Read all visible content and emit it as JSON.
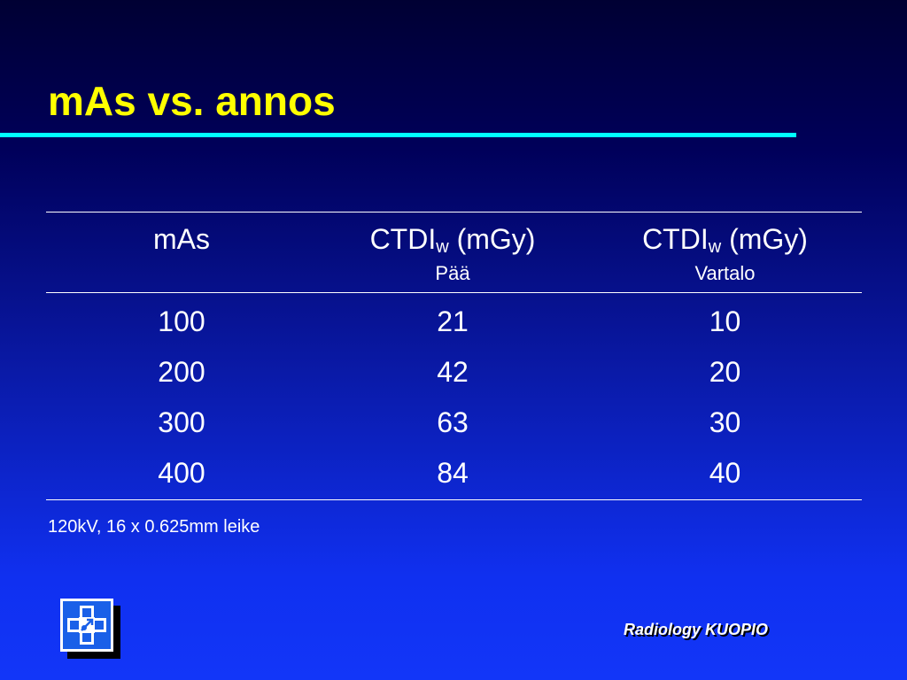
{
  "slide": {
    "title": "mAs vs. annos",
    "footnote": "120kV, 16 x 0.625mm leike",
    "brand": "Radiology KUOPIO"
  },
  "colors": {
    "title": "#ffff00",
    "rule": "#00ffff",
    "text": "#ffffff"
  },
  "table": {
    "headers": [
      {
        "main": "mAs",
        "subscript": "",
        "unit": "",
        "sub": ""
      },
      {
        "main": "CTDI",
        "subscript": "w",
        "unit": " (mGy)",
        "sub": "Pää"
      },
      {
        "main": "CTDI",
        "subscript": "w",
        "unit": " (mGy)",
        "sub": "Vartalo"
      }
    ],
    "rows": [
      [
        "100",
        "21",
        "10"
      ],
      [
        "200",
        "42",
        "20"
      ],
      [
        "300",
        "63",
        "30"
      ],
      [
        "400",
        "84",
        "40"
      ]
    ]
  },
  "logo": {
    "icon": "medical-cross-logo-icon"
  }
}
